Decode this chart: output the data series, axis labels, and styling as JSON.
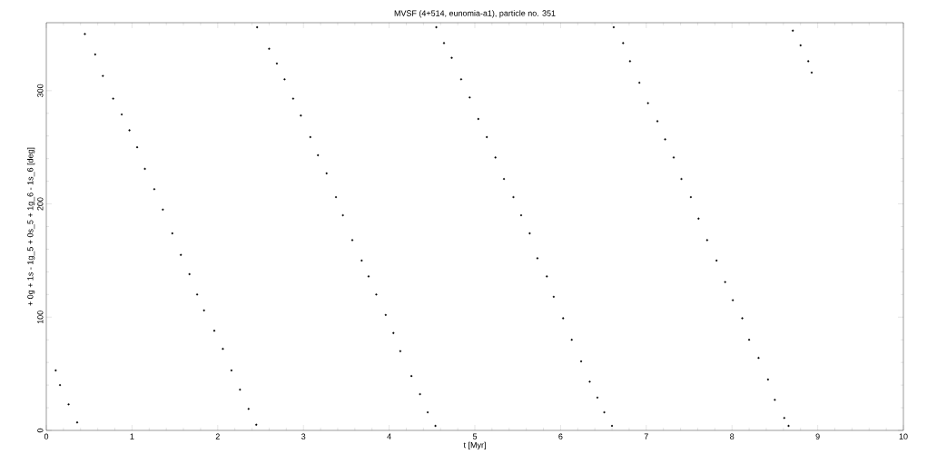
{
  "chart_data": {
    "type": "scatter",
    "title": "MVSF (4+514, eunomia-a1), particle no. 351",
    "xlabel": "t [Myr]",
    "ylabel": "+ 0g + 1s - 1g_5 + 0s_5 + 1g_6 - 1s_6 [deg]",
    "xlim": [
      0,
      10
    ],
    "ylim": [
      0,
      360
    ],
    "xticks": [
      0,
      1,
      2,
      3,
      4,
      5,
      6,
      7,
      8,
      9,
      10
    ],
    "yticks": [
      0,
      100,
      200,
      300
    ],
    "grid": false,
    "series": [
      {
        "color": "#000000",
        "x": [
          0.11,
          0.16,
          0.26,
          0.36,
          0.45,
          0.57,
          0.66,
          0.78,
          0.88,
          0.97,
          1.06,
          1.15,
          1.26,
          1.36,
          1.47,
          1.57,
          1.67,
          1.76,
          1.84,
          1.96,
          2.06,
          2.16,
          2.26,
          2.36,
          2.45,
          2.46,
          2.6,
          2.69,
          2.78,
          2.88,
          2.97,
          3.08,
          3.17,
          3.27,
          3.38,
          3.46,
          3.57,
          3.68,
          3.76,
          3.85,
          3.96,
          4.05,
          4.13,
          4.26,
          4.36,
          4.45,
          4.54,
          4.55,
          4.64,
          4.73,
          4.84,
          4.94,
          5.04,
          5.14,
          5.24,
          5.34,
          5.45,
          5.54,
          5.64,
          5.73,
          5.84,
          5.92,
          6.03,
          6.13,
          6.24,
          6.34,
          6.43,
          6.51,
          6.6,
          6.62,
          6.73,
          6.81,
          6.92,
          7.02,
          7.13,
          7.22,
          7.32,
          7.41,
          7.52,
          7.61,
          7.71,
          7.82,
          7.92,
          8.01,
          8.12,
          8.2,
          8.31,
          8.42,
          8.5,
          8.61,
          8.66,
          8.71,
          8.8,
          8.89,
          8.93
        ],
        "values": [
          53,
          40,
          23,
          7,
          350,
          332,
          313,
          293,
          279,
          265,
          250,
          231,
          213,
          195,
          174,
          155,
          138,
          120,
          106,
          88,
          72,
          53,
          36,
          19,
          5,
          356,
          337,
          324,
          310,
          293,
          278,
          259,
          243,
          227,
          206,
          190,
          168,
          150,
          136,
          120,
          102,
          86,
          70,
          48,
          32,
          16,
          4,
          356,
          342,
          329,
          310,
          294,
          275,
          259,
          241,
          222,
          206,
          190,
          174,
          152,
          136,
          118,
          99,
          80,
          61,
          43,
          29,
          16,
          4,
          356,
          342,
          326,
          307,
          289,
          273,
          257,
          241,
          222,
          206,
          187,
          168,
          150,
          131,
          115,
          99,
          80,
          64,
          45,
          27,
          11,
          4,
          353,
          340,
          326,
          316
        ]
      }
    ]
  }
}
